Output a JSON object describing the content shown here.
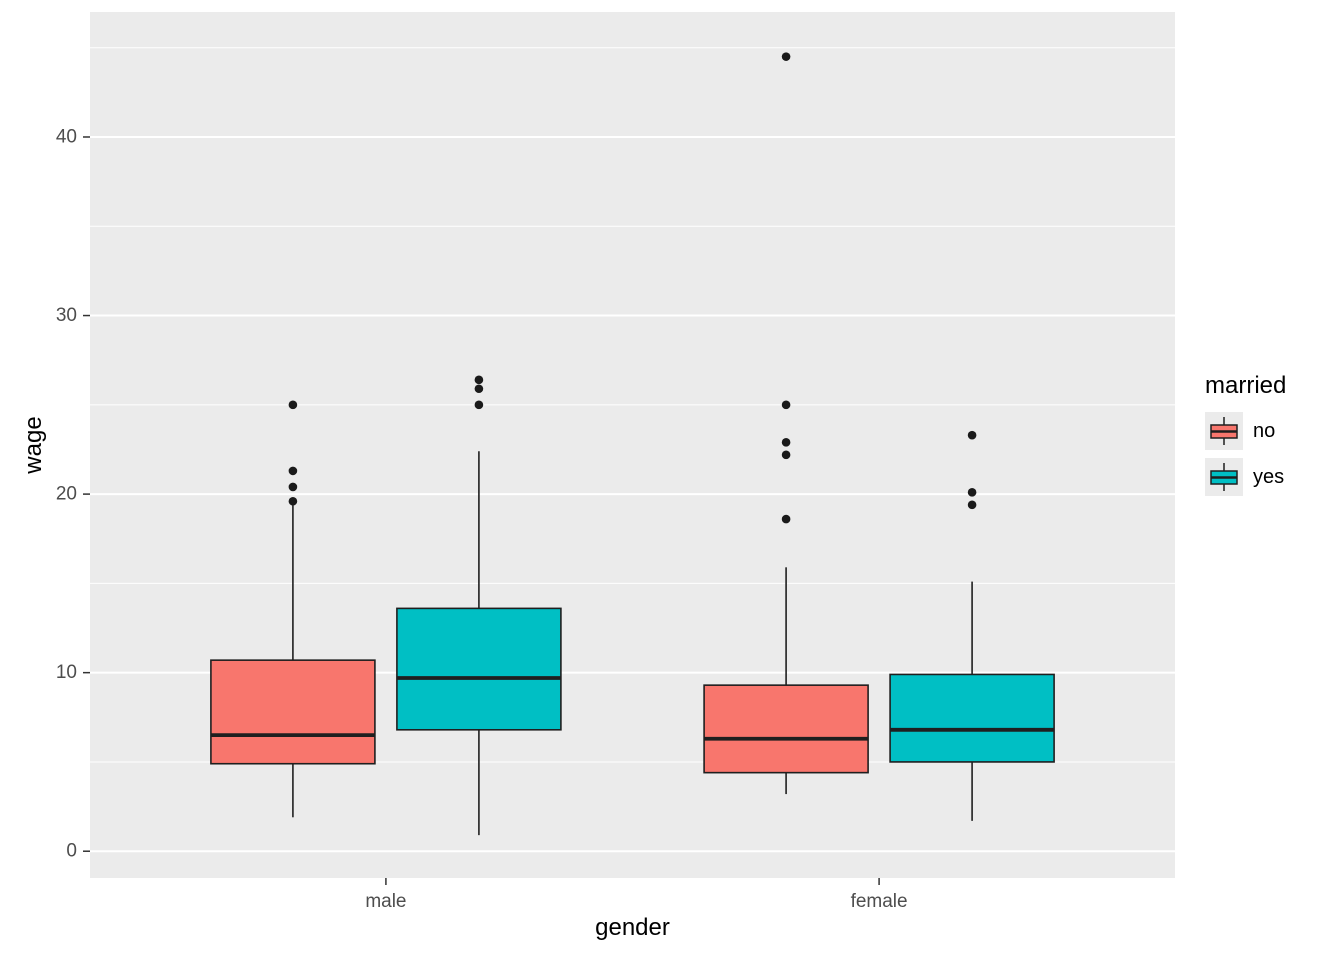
{
  "figure": {
    "panel_background": "#EBEBEB",
    "gridline_color": "#FFFFFF",
    "tick_label_color": "#4D4D4D",
    "box_outline_color": "#1F1F1F",
    "outlier_color": "#1A1A1A"
  },
  "chart_data": {
    "type": "boxplot",
    "title": "",
    "xlabel": "gender",
    "ylabel": "wage",
    "categories": [
      "male",
      "female"
    ],
    "ylim": [
      -1.5,
      47.0
    ],
    "yticks": [
      0,
      10,
      20,
      30,
      40
    ],
    "yticks_minor": [
      5,
      15,
      25,
      35,
      45
    ],
    "grid": true,
    "legend": {
      "title": "married",
      "position": "right",
      "entries": [
        {
          "label": "no",
          "color": "#F8766D"
        },
        {
          "label": "yes",
          "color": "#00BFC4"
        }
      ]
    },
    "series": [
      {
        "name": "no",
        "color": "#F8766D",
        "boxes": [
          {
            "category": "male",
            "whisker_low": 1.9,
            "q1": 4.9,
            "median": 6.5,
            "q3": 10.7,
            "whisker_high": 19.4,
            "outliers": [
              19.6,
              20.4,
              21.3,
              25.0
            ]
          },
          {
            "category": "female",
            "whisker_low": 3.2,
            "q1": 4.4,
            "median": 6.3,
            "q3": 9.3,
            "whisker_high": 15.9,
            "outliers": [
              18.6,
              22.2,
              22.9,
              25.0,
              44.5
            ]
          }
        ]
      },
      {
        "name": "yes",
        "color": "#00BFC4",
        "boxes": [
          {
            "category": "male",
            "whisker_low": 0.9,
            "q1": 6.8,
            "median": 9.7,
            "q3": 13.6,
            "whisker_high": 22.4,
            "outliers": [
              25.0,
              25.9,
              26.4
            ]
          },
          {
            "category": "female",
            "whisker_low": 1.7,
            "q1": 5.0,
            "median": 6.8,
            "q3": 9.9,
            "whisker_high": 15.1,
            "outliers": [
              19.4,
              20.1,
              23.3
            ]
          }
        ]
      }
    ]
  }
}
